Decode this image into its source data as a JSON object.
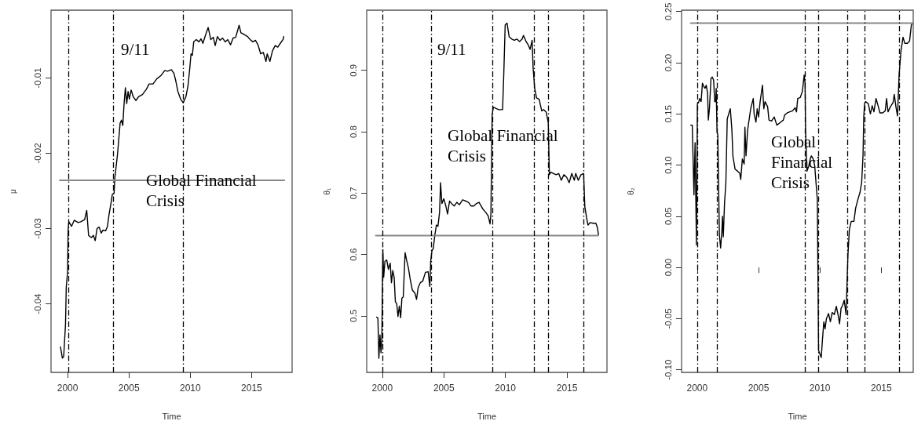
{
  "chart_data": [
    {
      "type": "line",
      "xlabel": "Time",
      "ylabel": "μ",
      "xlim": [
        1998.65,
        2018.3
      ],
      "xticks": [
        2000,
        2005,
        2010,
        2015
      ],
      "ylim": [
        -0.0491,
        -0.001
      ],
      "yticks": [
        -0.04,
        -0.03,
        -0.02,
        -0.01
      ],
      "series": [
        {
          "color": "#000000",
          "x": [
            1999.42,
            1999.57,
            1999.68,
            1999.83,
            1999.89,
            2000.0,
            2000.04,
            2000.1,
            2000.32,
            2000.54,
            2000.86,
            2001.07,
            2001.39,
            2001.56,
            2001.71,
            2001.93,
            2002.1,
            2002.25,
            2002.4,
            2002.57,
            2002.74,
            2002.89,
            2003.1,
            2003.25,
            2003.38,
            2003.53,
            2003.64,
            2003.79,
            2003.85,
            2004.07,
            2004.28,
            2004.39,
            2004.5,
            2004.6,
            2004.71,
            2004.82,
            2004.93,
            2005.03,
            2005.18,
            2005.35,
            2005.57,
            2005.78,
            2006.1,
            2006.42,
            2006.64,
            2006.96,
            2007.28,
            2007.6,
            2007.92,
            2008.14,
            2008.46,
            2008.67,
            2008.82,
            2008.99,
            2009.21,
            2009.42,
            2009.64,
            2009.81,
            2009.96,
            2010.06,
            2010.17,
            2010.28,
            2010.49,
            2010.71,
            2010.88,
            2011.03,
            2011.24,
            2011.46,
            2011.67,
            2011.88,
            2012.03,
            2012.21,
            2012.42,
            2012.63,
            2012.85,
            2013.06,
            2013.28,
            2013.49,
            2013.7,
            2013.98,
            2014.13,
            2014.35,
            2014.67,
            2014.88,
            2015.1,
            2015.31,
            2015.52,
            2015.74,
            2015.95,
            2016.17,
            2016.27,
            2016.49,
            2016.7,
            2016.92,
            2017.13,
            2017.34,
            2017.56,
            2017.62
          ],
          "values": [
            -0.0457,
            -0.0472,
            -0.047,
            -0.0427,
            -0.0378,
            -0.0357,
            -0.0302,
            -0.0291,
            -0.0297,
            -0.0289,
            -0.0292,
            -0.0291,
            -0.0288,
            -0.0276,
            -0.0309,
            -0.0312,
            -0.0309,
            -0.0316,
            -0.03,
            -0.0298,
            -0.0306,
            -0.0302,
            -0.0303,
            -0.0297,
            -0.0281,
            -0.0267,
            -0.0255,
            -0.0253,
            -0.0233,
            -0.0201,
            -0.016,
            -0.0156,
            -0.0163,
            -0.0135,
            -0.0113,
            -0.0134,
            -0.0118,
            -0.0128,
            -0.0116,
            -0.0125,
            -0.013,
            -0.0125,
            -0.0122,
            -0.0115,
            -0.0108,
            -0.0108,
            -0.0101,
            -0.0097,
            -0.009,
            -0.0091,
            -0.0089,
            -0.0094,
            -0.0104,
            -0.0118,
            -0.0128,
            -0.0133,
            -0.0125,
            -0.0111,
            -0.0087,
            -0.0068,
            -0.007,
            -0.0052,
            -0.0049,
            -0.0052,
            -0.0048,
            -0.0054,
            -0.0043,
            -0.0033,
            -0.0049,
            -0.0046,
            -0.0057,
            -0.0045,
            -0.005,
            -0.0047,
            -0.0052,
            -0.0049,
            -0.0056,
            -0.0047,
            -0.0046,
            -0.003,
            -0.004,
            -0.0042,
            -0.0045,
            -0.0049,
            -0.0052,
            -0.005,
            -0.0056,
            -0.0068,
            -0.0066,
            -0.0078,
            -0.0068,
            -0.0078,
            -0.0064,
            -0.0057,
            -0.0059,
            -0.0054,
            -0.0049,
            -0.0045
          ]
        },
        {
          "color": "#888888",
          "x": [
            1999.36,
            2017.67
          ],
          "values": [
            -0.0236,
            -0.0236
          ]
        }
      ],
      "ref_lines": [
        {
          "axis": "x",
          "value": 2000.06,
          "color": "#000000",
          "line_style": "dashed"
        },
        {
          "axis": "x",
          "value": 2003.75,
          "color": "#000000",
          "line_style": "dashed"
        },
        {
          "axis": "x",
          "value": 2009.42,
          "color": "#000000",
          "line_style": "dashed"
        }
      ],
      "annotations": [
        "9/11",
        "Global Financial\nCrisis"
      ]
    },
    {
      "type": "line",
      "xlabel": "Time",
      "ylabel": "θ₁",
      "xlim": [
        1998.73,
        2018.25
      ],
      "xticks": [
        2000,
        2005,
        2010,
        2015
      ],
      "ylim": [
        0.408,
        0.998
      ],
      "yticks": [
        0.5,
        0.6,
        0.7,
        0.8,
        0.9
      ],
      "series": [
        {
          "color": "#000000",
          "x": [
            1999.53,
            1999.64,
            1999.72,
            1999.81,
            1999.89,
            1999.96,
            2000.04,
            2000.11,
            2000.21,
            2000.36,
            2000.49,
            2000.64,
            2000.74,
            2000.85,
            2000.96,
            2001.06,
            2001.17,
            2001.27,
            2001.38,
            2001.49,
            2001.59,
            2001.7,
            2001.85,
            2001.97,
            2002.12,
            2002.27,
            2002.44,
            2002.65,
            2002.78,
            2002.91,
            2003.08,
            2003.29,
            2003.5,
            2003.72,
            2003.86,
            2003.93,
            2004.03,
            2004.14,
            2004.25,
            2004.39,
            2004.52,
            2004.65,
            2004.73,
            2004.84,
            2004.99,
            2005.16,
            2005.3,
            2005.46,
            2005.63,
            2005.84,
            2006.05,
            2006.26,
            2006.52,
            2006.79,
            2007.0,
            2007.22,
            2007.43,
            2007.64,
            2007.86,
            2008.03,
            2008.17,
            2008.39,
            2008.6,
            2008.75,
            2008.82,
            2008.92,
            2009.02,
            2009.24,
            2009.45,
            2009.77,
            2009.87,
            2009.98,
            2010.13,
            2010.3,
            2010.51,
            2010.72,
            2010.93,
            2011.15,
            2011.36,
            2011.46,
            2011.68,
            2011.89,
            2012.0,
            2012.17,
            2012.25,
            2012.38,
            2012.53,
            2012.74,
            2012.95,
            2013.1,
            2013.31,
            2013.48,
            2013.57,
            2013.69,
            2013.91,
            2014.12,
            2014.33,
            2014.54,
            2014.75,
            2014.97,
            2015.18,
            2015.39,
            2015.6,
            2015.71,
            2015.92,
            2016.14,
            2016.35,
            2016.45,
            2016.62,
            2016.71,
            2016.88,
            2017.1,
            2017.35,
            2017.47,
            2017.56
          ],
          "values": [
            0.498,
            0.497,
            0.431,
            0.469,
            0.44,
            0.461,
            0.608,
            0.563,
            0.589,
            0.591,
            0.576,
            0.586,
            0.554,
            0.574,
            0.563,
            0.523,
            0.52,
            0.499,
            0.516,
            0.497,
            0.529,
            0.531,
            0.603,
            0.591,
            0.578,
            0.559,
            0.542,
            0.537,
            0.527,
            0.546,
            0.554,
            0.557,
            0.571,
            0.572,
            0.548,
            0.589,
            0.606,
            0.61,
            0.629,
            0.648,
            0.646,
            0.669,
            0.717,
            0.683,
            0.691,
            0.679,
            0.666,
            0.687,
            0.683,
            0.679,
            0.685,
            0.681,
            0.689,
            0.687,
            0.685,
            0.679,
            0.679,
            0.683,
            0.685,
            0.679,
            0.674,
            0.669,
            0.663,
            0.65,
            0.665,
            0.828,
            0.84,
            0.838,
            0.836,
            0.836,
            0.896,
            0.974,
            0.977,
            0.955,
            0.951,
            0.949,
            0.951,
            0.947,
            0.951,
            0.957,
            0.947,
            0.94,
            0.934,
            0.949,
            0.904,
            0.87,
            0.855,
            0.853,
            0.834,
            0.836,
            0.832,
            0.815,
            0.73,
            0.734,
            0.732,
            0.73,
            0.732,
            0.721,
            0.73,
            0.726,
            0.717,
            0.732,
            0.721,
            0.732,
            0.721,
            0.73,
            0.732,
            0.678,
            0.657,
            0.648,
            0.652,
            0.651,
            0.651,
            0.644,
            0.632
          ]
        },
        {
          "color": "#888888",
          "x": [
            1999.47,
            2017.52
          ],
          "values": [
            0.631,
            0.631
          ]
        }
      ],
      "ref_lines": [
        {
          "axis": "x",
          "value": 2000.0,
          "color": "#000000",
          "line_style": "dashed"
        },
        {
          "axis": "x",
          "value": 2004.0,
          "color": "#000000",
          "line_style": "dashed"
        },
        {
          "axis": "x",
          "value": 2008.97,
          "color": "#000000",
          "line_style": "dashed"
        },
        {
          "axis": "x",
          "value": 2012.32,
          "color": "#000000",
          "line_style": "dashed"
        },
        {
          "axis": "x",
          "value": 2013.47,
          "color": "#000000",
          "line_style": "dashed"
        },
        {
          "axis": "x",
          "value": 2016.36,
          "color": "#000000",
          "line_style": "dashed"
        }
      ],
      "annotations": [
        "9/11",
        "Global Financial\nCrisis"
      ]
    },
    {
      "type": "line",
      "xlabel": "Time",
      "ylabel": "θ₂",
      "xlim": [
        1998.73,
        2017.6
      ],
      "xticks": [
        2000,
        2005,
        2010,
        2015
      ],
      "ylim": [
        -0.1025,
        0.2513
      ],
      "yticks": [
        {
          "value": -0.1,
          "label": "-0.10"
        },
        -0.05,
        {
          "value": 0,
          "label": "0.00"
        },
        0.05,
        {
          "value": 0.1,
          "label": "0.10"
        },
        0.15,
        {
          "value": 0.2,
          "label": "0.20"
        },
        0.25
      ],
      "series": [
        {
          "color": "#000000",
          "x": [
            1999.47,
            1999.6,
            1999.74,
            1999.83,
            1999.94,
            2000.02,
            2000.11,
            2000.21,
            2000.32,
            2000.43,
            2000.53,
            2000.64,
            2000.74,
            2000.85,
            2000.91,
            2001.0,
            2001.13,
            2001.23,
            2001.34,
            2001.43,
            2001.51,
            2001.55,
            2001.62,
            2001.68,
            2001.81,
            2001.91,
            2002.02,
            2002.06,
            2002.13,
            2002.23,
            2002.34,
            2002.45,
            2002.62,
            2002.7,
            2002.83,
            2002.91,
            2003.09,
            2003.3,
            2003.47,
            2003.55,
            2003.68,
            2003.83,
            2003.89,
            2003.98,
            2004.11,
            2004.36,
            2004.57,
            2004.64,
            2004.79,
            2004.89,
            2005.0,
            2005.13,
            2005.32,
            2005.43,
            2005.53,
            2005.74,
            2005.85,
            2006.06,
            2006.28,
            2006.49,
            2006.81,
            2007.02,
            2007.13,
            2007.34,
            2007.55,
            2007.77,
            2007.98,
            2008.09,
            2008.19,
            2008.4,
            2008.57,
            2008.72,
            2008.79,
            2008.83,
            2008.94,
            2009.09,
            2009.21,
            2009.3,
            2009.42,
            2009.57,
            2009.68,
            2009.79,
            2009.89,
            2010.11,
            2010.21,
            2010.32,
            2010.42,
            2010.53,
            2010.7,
            2010.85,
            2011.0,
            2011.17,
            2011.34,
            2011.49,
            2011.6,
            2011.72,
            2011.85,
            2011.98,
            2012.13,
            2012.28,
            2012.4,
            2012.55,
            2012.77,
            2012.91,
            2013.13,
            2013.26,
            2013.4,
            2013.51,
            2013.57,
            2013.64,
            2013.72,
            2013.94,
            2014.11,
            2014.26,
            2014.4,
            2014.57,
            2014.74,
            2014.89,
            2015.11,
            2015.32,
            2015.43,
            2015.55,
            2015.74,
            2015.96,
            2016.06,
            2016.19,
            2016.32,
            2016.45,
            2016.6,
            2016.77,
            2016.91,
            2017.13,
            2017.3,
            2017.45,
            2017.55
          ],
          "values": [
            0.139,
            0.139,
            0.071,
            0.122,
            0.022,
            0.16,
            0.161,
            0.165,
            0.162,
            0.18,
            0.177,
            0.175,
            0.178,
            0.17,
            0.144,
            0.155,
            0.185,
            0.186,
            0.183,
            0.162,
            0.162,
            0.175,
            0.132,
            0.13,
            0.032,
            0.019,
            0.037,
            0.05,
            0.03,
            0.063,
            0.083,
            0.145,
            0.152,
            0.155,
            0.134,
            0.109,
            0.096,
            0.094,
            0.092,
            0.086,
            0.106,
            0.101,
            0.137,
            0.109,
            0.134,
            0.155,
            0.165,
            0.15,
            0.142,
            0.155,
            0.147,
            0.162,
            0.178,
            0.155,
            0.162,
            0.157,
            0.144,
            0.143,
            0.147,
            0.139,
            0.142,
            0.144,
            0.149,
            0.151,
            0.152,
            0.153,
            0.156,
            0.152,
            0.165,
            0.166,
            0.172,
            0.188,
            0.18,
            0.134,
            0.094,
            0.099,
            0.106,
            0.109,
            0.107,
            0.1,
            0.083,
            0.066,
            -0.081,
            -0.088,
            -0.07,
            -0.053,
            -0.06,
            -0.05,
            -0.045,
            -0.053,
            -0.044,
            -0.046,
            -0.038,
            -0.047,
            -0.055,
            -0.04,
            -0.037,
            -0.032,
            -0.046,
            0.012,
            0.037,
            0.045,
            0.045,
            0.058,
            0.068,
            0.073,
            0.083,
            0.109,
            0.147,
            0.16,
            0.162,
            0.16,
            0.15,
            0.158,
            0.152,
            0.165,
            0.158,
            0.151,
            0.151,
            0.153,
            0.165,
            0.152,
            0.157,
            0.161,
            0.169,
            0.157,
            0.148,
            0.188,
            0.211,
            0.225,
            0.219,
            0.219,
            0.221,
            0.237,
            0.2386
          ]
        },
        {
          "color": "#888888",
          "x": [
            1999.47,
            2017.6
          ],
          "values": [
            0.2386,
            0.2386
          ]
        }
      ],
      "ref_lines": [
        {
          "axis": "x",
          "value": 2000.0,
          "color": "#000000",
          "line_style": "dashed"
        },
        {
          "axis": "x",
          "value": 2001.6,
          "color": "#000000",
          "line_style": "dashed"
        },
        {
          "axis": "x",
          "value": 2008.79,
          "color": "#000000",
          "line_style": "dashed"
        },
        {
          "axis": "x",
          "value": 2009.9,
          "color": "#000000",
          "line_style": "dashed"
        },
        {
          "axis": "x",
          "value": 2012.23,
          "color": "#000000",
          "line_style": "dashed"
        },
        {
          "axis": "x",
          "value": 2013.64,
          "color": "#000000",
          "line_style": "dashed"
        },
        {
          "axis": "x",
          "value": 2016.45,
          "color": "#000000",
          "line_style": "dashed"
        }
      ],
      "annotations": [
        "Global\nFinancial\nCrisis"
      ]
    }
  ]
}
